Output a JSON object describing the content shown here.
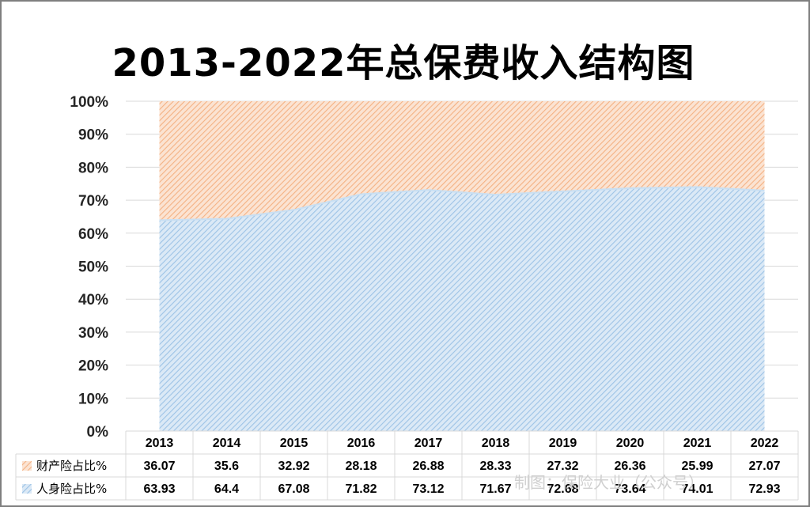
{
  "chart_data": {
    "type": "area",
    "stacked": true,
    "percent": true,
    "title": "2013-2022年总保费收入结构图",
    "categories": [
      "2013",
      "2014",
      "2015",
      "2016",
      "2017",
      "2018",
      "2019",
      "2020",
      "2021",
      "2022"
    ],
    "y_ticks": [
      "0%",
      "10%",
      "20%",
      "30%",
      "40%",
      "50%",
      "60%",
      "70%",
      "80%",
      "90%",
      "100%"
    ],
    "ylim": [
      0,
      100
    ],
    "grid": true,
    "legend_placement": "data-table",
    "series": [
      {
        "name": "人身险占比%",
        "color": "#9dc3e6",
        "values": [
          63.93,
          64.4,
          67.08,
          71.82,
          73.12,
          71.67,
          72.68,
          73.64,
          74.01,
          72.93
        ]
      },
      {
        "name": "财产险占比%",
        "color": "#f4b183",
        "values": [
          36.07,
          35.6,
          32.92,
          28.18,
          26.88,
          28.33,
          27.32,
          26.36,
          25.99,
          27.07
        ]
      }
    ],
    "table_rows": [
      {
        "name": "财产险占比%",
        "cells": [
          "36.07",
          "35.6",
          "32.92",
          "28.18",
          "26.88",
          "28.33",
          "27.32",
          "26.36",
          "25.99",
          "27.07"
        ]
      },
      {
        "name": "人身险占比%",
        "cells": [
          "63.93",
          "64.4",
          "67.08",
          "71.82",
          "73.12",
          "71.67",
          "72.68",
          "73.64",
          "74.01",
          "72.93"
        ]
      }
    ]
  },
  "watermark": "制图：保险大业（公众号）"
}
